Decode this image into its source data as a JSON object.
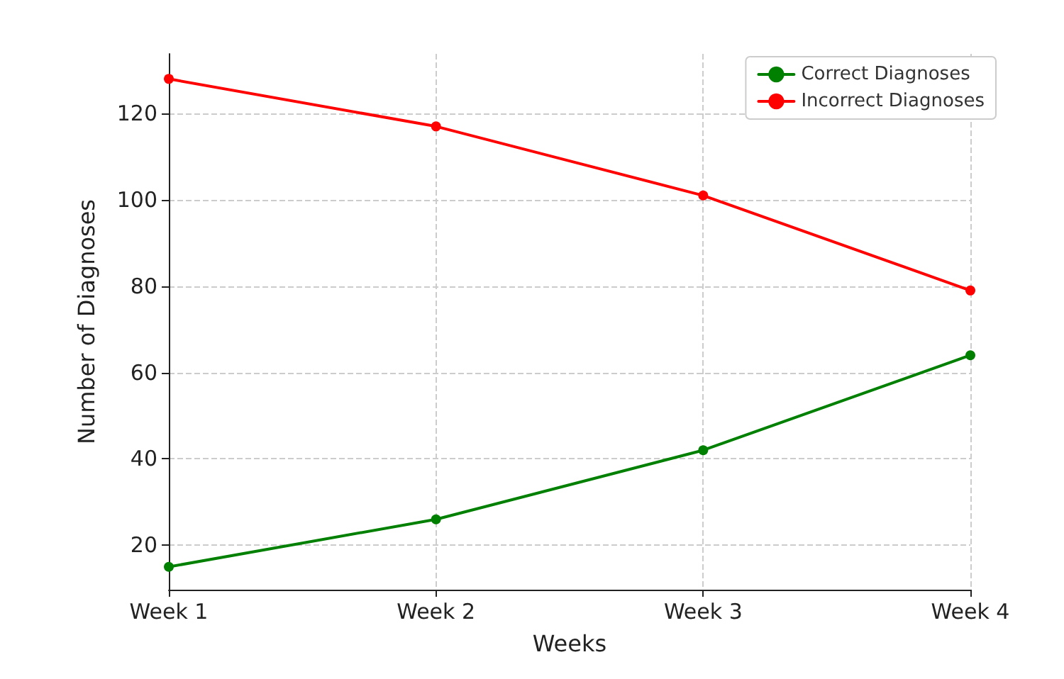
{
  "chart_data": {
    "type": "line",
    "xlabel": "Weeks",
    "ylabel": "Number of Diagnoses",
    "categories": [
      "Week 1",
      "Week 2",
      "Week 3",
      "Week 4"
    ],
    "series": [
      {
        "name": "Correct Diagnoses",
        "color": "#008000",
        "values": [
          15,
          26,
          42,
          64
        ]
      },
      {
        "name": "Incorrect Diagnoses",
        "color": "#ff0000",
        "values": [
          128,
          117,
          101,
          79
        ]
      }
    ],
    "ylim": [
      9.7,
      133.8
    ],
    "yticks": [
      20,
      40,
      60,
      80,
      100,
      120
    ],
    "grid": true,
    "legend": "top right",
    "marker": "circle",
    "line_style": "solid"
  }
}
